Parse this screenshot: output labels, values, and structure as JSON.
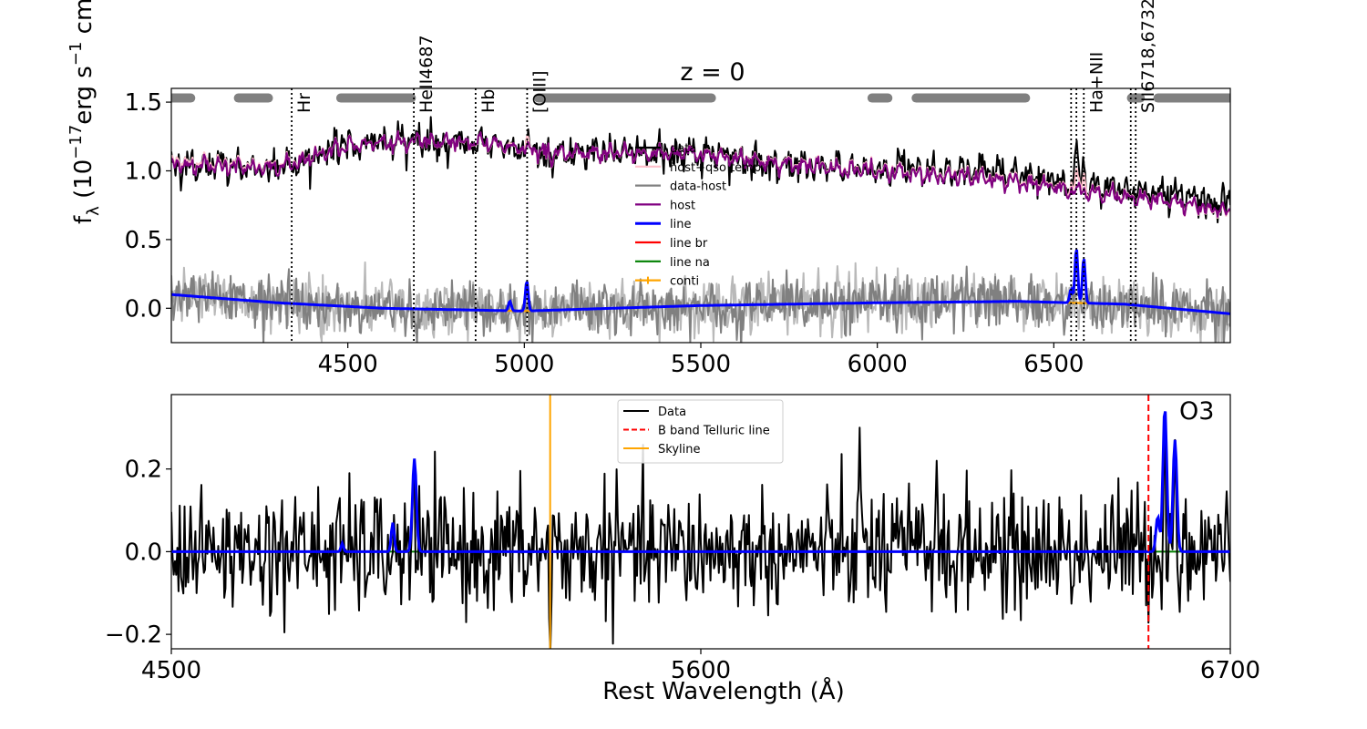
{
  "chart_data": [
    {
      "type": "line",
      "title": "z = 0",
      "ylabel_main": "f",
      "ylabel_sub": "λ",
      "ylabel_rest": " (10",
      "ylabel_exp": "−17",
      "ylabel_unit": "erg s",
      "ylabel_unit_exp": "−1",
      "ylabel_tail": " cm",
      "xlim": [
        4000,
        7000
      ],
      "ylim": [
        -0.25,
        1.6
      ],
      "xticks": [
        4500,
        5000,
        5500,
        6000,
        6500
      ],
      "yticks": [
        "0.0",
        "0.5",
        "1.0",
        "1.5"
      ],
      "ytick_values": [
        0.0,
        0.5,
        1.0,
        1.5
      ],
      "emission_lines": [
        {
          "label": "Hr",
          "x": [
            4341
          ]
        },
        {
          "label": "HeII4687",
          "x": [
            4687
          ]
        },
        {
          "label": "Hb",
          "x": [
            4862
          ]
        },
        {
          "label": "[OIII]",
          "x": [
            5008
          ]
        },
        {
          "label": "Ha+NII",
          "x": [
            6549,
            6564,
            6585
          ]
        },
        {
          "label": "SII6718,6732",
          "x": [
            6718,
            6732
          ]
        }
      ],
      "fit_windows": [
        [
          4000,
          4055
        ],
        [
          4190,
          4275
        ],
        [
          4480,
          4680
        ],
        [
          5040,
          5530
        ],
        [
          5985,
          6030
        ],
        [
          6110,
          6420
        ],
        [
          6720,
          6745
        ],
        [
          6795,
          7000
        ]
      ],
      "fit_window_y": 1.53,
      "series": [
        {
          "name": "data",
          "color": "#000000",
          "width": 2.2
        },
        {
          "name": "host+qso temp",
          "color": "#ffc0cb",
          "width": 2.2
        },
        {
          "name": "data-host",
          "color": "#808080",
          "width": 2.2
        },
        {
          "name": "host",
          "color": "#800080",
          "width": 2.2
        },
        {
          "name": "line",
          "color": "#0000ff",
          "width": 3
        },
        {
          "name": "line br",
          "color": "#ff0000",
          "width": 2.2
        },
        {
          "name": "line na",
          "color": "#008000",
          "width": 2.2
        },
        {
          "name": "conti",
          "color": "#ffa500",
          "width": 2.2
        }
      ],
      "host_trend": [
        [
          4000,
          1.05
        ],
        [
          4300,
          1.02
        ],
        [
          4500,
          1.18
        ],
        [
          4700,
          1.22
        ],
        [
          4900,
          1.2
        ],
        [
          5100,
          1.12
        ],
        [
          5300,
          1.13
        ],
        [
          5500,
          1.12
        ],
        [
          5800,
          1.03
        ],
        [
          6100,
          0.98
        ],
        [
          6400,
          0.92
        ],
        [
          6600,
          0.84
        ],
        [
          6800,
          0.79
        ],
        [
          7000,
          0.7
        ]
      ],
      "conti_trend": [
        [
          4000,
          0.1
        ],
        [
          4300,
          0.04
        ],
        [
          4600,
          0.0
        ],
        [
          5000,
          -0.02
        ],
        [
          5500,
          0.02
        ],
        [
          6000,
          0.04
        ],
        [
          6400,
          0.05
        ],
        [
          6700,
          0.03
        ],
        [
          7000,
          -0.04
        ]
      ],
      "line_peaks": [
        {
          "x": 4959,
          "amp": 0.07,
          "sigma": 4
        },
        {
          "x": 5007,
          "amp": 0.22,
          "sigma": 4
        },
        {
          "x": 6549,
          "amp": 0.1,
          "sigma": 4
        },
        {
          "x": 6564,
          "amp": 0.4,
          "sigma": 4
        },
        {
          "x": 6585,
          "amp": 0.33,
          "sigma": 4
        }
      ],
      "data_peaks": [
        {
          "x": 6564,
          "amp": 0.4,
          "sigma": 4
        },
        {
          "x": 6585,
          "amp": 0.25,
          "sigma": 4
        }
      ]
    },
    {
      "type": "line",
      "xlabel": "Rest Wavelength (Å)",
      "xlim": [
        4500,
        6700
      ],
      "ylim": [
        -0.235,
        0.38
      ],
      "xticks": [
        4500,
        5600,
        6700
      ],
      "yticks": [
        "0.2",
        "0.0",
        "−0.2"
      ],
      "ytick_values": [
        0.2,
        0.0,
        -0.2
      ],
      "annotation": "O3",
      "annotation_x": 6530,
      "vlines": [
        {
          "name": "B band Telluric line",
          "x": 6530,
          "color": "#ff0000",
          "dashed": true
        },
        {
          "name": "Skyline",
          "x": 5287,
          "color": "#ffa500",
          "dashed": false
        }
      ],
      "series": [
        {
          "name": "Data",
          "color": "#000000",
          "width": 2.2
        },
        {
          "name": "B band Telluric line",
          "color": "#ff0000",
          "width": 2.2,
          "dashed": true
        },
        {
          "name": "Skyline",
          "color": "#ffa500",
          "width": 2.2
        }
      ],
      "line_peaks": [
        {
          "x": 4855,
          "amp": 0.02,
          "sigma": 2.5
        },
        {
          "x": 4960,
          "amp": 0.07,
          "sigma": 3
        },
        {
          "x": 5005,
          "amp": 0.225,
          "sigma": 4
        },
        {
          "x": 6549,
          "amp": 0.085,
          "sigma": 3.5
        },
        {
          "x": 6564,
          "amp": 0.35,
          "sigma": 4
        },
        {
          "x": 6585,
          "amp": 0.27,
          "sigma": 4
        }
      ],
      "data_spikes": [
        {
          "x": 5004,
          "amp": 0.26
        },
        {
          "x": 5930,
          "amp": 0.3
        },
        {
          "x": 6090,
          "amp": 0.22
        },
        {
          "x": 6564,
          "amp": 0.35
        },
        {
          "x": 6585,
          "amp": 0.27
        },
        {
          "x": 5287,
          "amp": -0.27
        }
      ]
    }
  ]
}
